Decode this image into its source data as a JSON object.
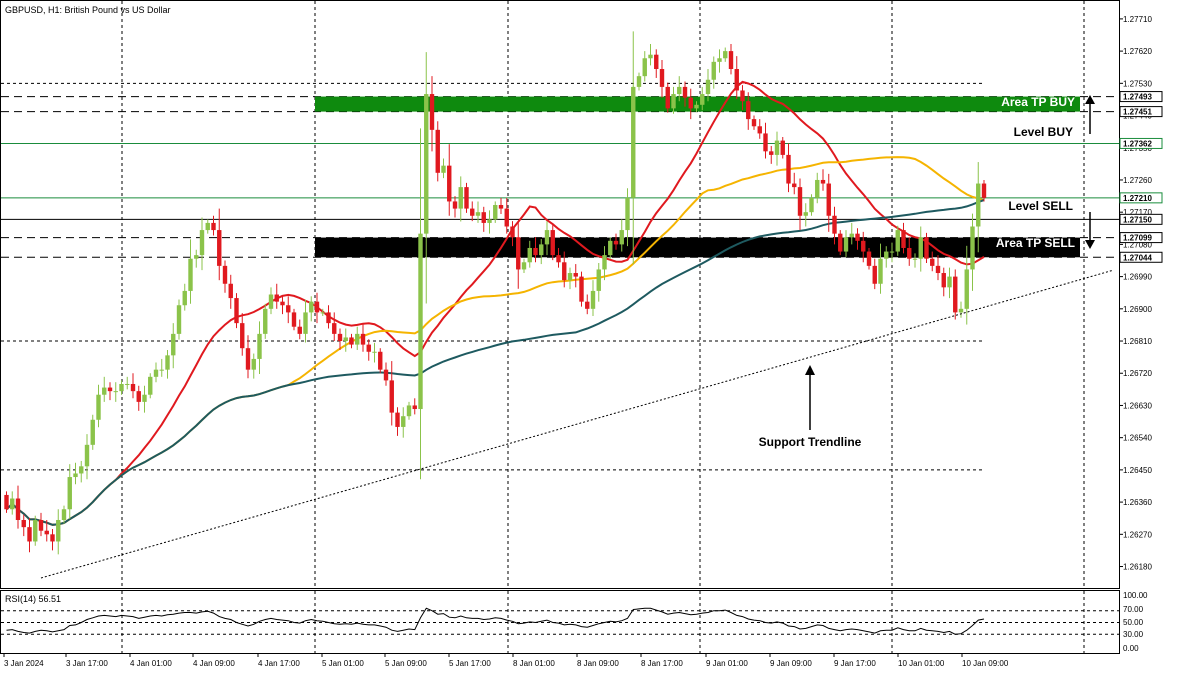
{
  "symbol_title": "GBPUSD, H1:  British Pound vs US Dollar",
  "rsi_title": "RSI(14) 56.51",
  "colors": {
    "bull": "#8bc34a",
    "bear": "#e0191f",
    "ma_red": "#e0191f",
    "ma_orange": "#f5b400",
    "ma_teal": "#1e5a60",
    "tp_buy": "#0e8a0e",
    "tp_sell": "#000000",
    "level_green": "#1a8c3c"
  },
  "annotations": {
    "area_tp_buy": "Area TP BUY",
    "area_tp_sell": "Area TP SELL",
    "level_buy": "Level BUY",
    "level_sell": "Level SELL",
    "support_trendline": "Support Trendline"
  },
  "chart_data": {
    "type": "candlestick",
    "instrument": "GBPUSD",
    "timeframe": "H1",
    "y_range": [
      1.2612,
      1.2776
    ],
    "y_ticks": [
      "1.27710",
      "1.27620",
      "1.27530",
      "1.27440",
      "1.27350",
      "1.27260",
      "1.27170",
      "1.27080",
      "1.26990",
      "1.26900",
      "1.26810",
      "1.26720",
      "1.26630",
      "1.26540",
      "1.26450",
      "1.26360",
      "1.26270",
      "1.26180"
    ],
    "x_ticks": [
      "3 Jan 2024",
      "3 Jan 17:00",
      "4 Jan 01:00",
      "4 Jan 09:00",
      "4 Jan 17:00",
      "5 Jan 01:00",
      "5 Jan 09:00",
      "5 Jan 17:00",
      "8 Jan 01:00",
      "8 Jan 09:00",
      "8 Jan 17:00",
      "9 Jan 01:00",
      "9 Jan 09:00",
      "9 Jan 17:00",
      "10 Jan 01:00",
      "10 Jan 09:00"
    ],
    "price_labels": [
      {
        "text": "1.27493",
        "value": 1.27493,
        "style": "tp_buy"
      },
      {
        "text": "1.27451",
        "value": 1.27451,
        "style": "tp_buy"
      },
      {
        "text": "1.27362",
        "value": 1.27362,
        "style": "level_green"
      },
      {
        "text": "1.27210",
        "value": 1.2721,
        "style": "level_green"
      },
      {
        "text": "1.27150",
        "value": 1.2715,
        "style": "black"
      },
      {
        "text": "1.27099",
        "value": 1.27099,
        "style": "black"
      },
      {
        "text": "1.27044",
        "value": 1.27044,
        "style": "black"
      }
    ],
    "zones": {
      "tp_buy": [
        1.27451,
        1.27493
      ],
      "tp_sell": [
        1.27044,
        1.27099
      ]
    },
    "levels": {
      "buy": 1.27362,
      "sell_green": 1.2721,
      "sell_black": 1.2715
    },
    "trendline": {
      "start": {
        "bar": 6,
        "price": 1.26148
      },
      "end": {
        "bar": 174,
        "price": 1.26998
      }
    },
    "closes": [
      1.2634,
      1.2637,
      1.2631,
      1.2629,
      1.2625,
      1.2631,
      1.2628,
      1.2627,
      1.2625,
      1.2631,
      1.2634,
      1.2643,
      1.2644,
      1.2646,
      1.2652,
      1.2659,
      1.2666,
      1.2668,
      1.2667,
      1.2667,
      1.2669,
      1.2669,
      1.2667,
      1.2664,
      1.2666,
      1.2671,
      1.2673,
      1.2673,
      1.2677,
      1.2683,
      1.2691,
      1.2695,
      1.2704,
      1.2705,
      1.2712,
      1.2714,
      1.2712,
      1.2702,
      1.2697,
      1.2693,
      1.2686,
      1.2679,
      1.2673,
      1.2676,
      1.2683,
      1.269,
      1.2694,
      1.2692,
      1.2691,
      1.2689,
      1.2685,
      1.2683,
      1.2689,
      1.2692,
      1.2689,
      1.2689,
      1.2686,
      1.2683,
      1.2681,
      1.2682,
      1.268,
      1.2683,
      1.268,
      1.2678,
      1.2678,
      1.2673,
      1.267,
      1.2661,
      1.2657,
      1.266,
      1.2663,
      1.2662,
      1.2711,
      1.275,
      1.274,
      1.2728,
      1.273,
      1.272,
      1.2718,
      1.2724,
      1.2718,
      1.2716,
      1.2717,
      1.2714,
      1.2715,
      1.2719,
      1.2718,
      1.2713,
      1.271,
      1.2701,
      1.2703,
      1.2707,
      1.2705,
      1.2708,
      1.2712,
      1.2705,
      1.2703,
      1.2698,
      1.27,
      1.2699,
      1.2692,
      1.269,
      1.2695,
      1.2701,
      1.2705,
      1.2709,
      1.2708,
      1.2712,
      1.2721,
      1.2752,
      1.2755,
      1.276,
      1.2761,
      1.2757,
      1.2752,
      1.2746,
      1.275,
      1.2752,
      1.2749,
      1.2746,
      1.2747,
      1.275,
      1.2754,
      1.2759,
      1.276,
      1.2762,
      1.2757,
      1.2751,
      1.2748,
      1.2743,
      1.2741,
      1.2739,
      1.2734,
      1.2733,
      1.2737,
      1.2733,
      1.2725,
      1.2724,
      1.2716,
      1.2717,
      1.2721,
      1.2726,
      1.2725,
      1.2716,
      1.2711,
      1.2706,
      1.271,
      1.2711,
      1.2709,
      1.2706,
      1.2702,
      1.2697,
      1.2704,
      1.2706,
      1.2706,
      1.2712,
      1.2707,
      1.2704,
      1.2704,
      1.271,
      1.2704,
      1.2702,
      1.27,
      1.2696,
      1.2699,
      1.2689,
      1.269,
      1.2701,
      1.2713,
      1.2725,
      1.2721
    ],
    "rsi": {
      "title": "RSI(14) 56.51",
      "range": [
        0,
        100
      ],
      "ticks": [
        "100.00",
        "70.00",
        "50.00",
        "30.00",
        "0.00"
      ],
      "levels": [
        70,
        50,
        30
      ],
      "values": [
        37,
        38,
        35,
        33,
        32,
        35,
        37,
        36,
        34,
        36,
        38,
        45,
        46,
        50,
        55,
        58,
        61,
        62,
        61,
        60,
        62,
        61,
        60,
        57,
        59,
        61,
        62,
        61,
        63,
        64,
        66,
        67,
        67,
        66,
        68,
        69,
        66,
        60,
        57,
        55,
        50,
        47,
        44,
        47,
        52,
        55,
        57,
        55,
        54,
        53,
        50,
        49,
        53,
        55,
        53,
        52,
        50,
        48,
        47,
        48,
        47,
        49,
        47,
        46,
        46,
        44,
        42,
        37,
        35,
        37,
        39,
        38,
        58,
        74,
        70,
        64,
        65,
        59,
        58,
        61,
        58,
        57,
        57,
        55,
        56,
        58,
        57,
        54,
        52,
        48,
        49,
        51,
        50,
        52,
        54,
        50,
        49,
        46,
        47,
        46,
        43,
        42,
        45,
        48,
        50,
        52,
        51,
        53,
        57,
        72,
        73,
        74,
        74,
        71,
        68,
        64,
        66,
        67,
        65,
        63,
        64,
        66,
        67,
        70,
        70,
        71,
        67,
        62,
        60,
        56,
        54,
        53,
        50,
        49,
        51,
        49,
        44,
        43,
        39,
        40,
        43,
        46,
        45,
        40,
        38,
        36,
        38,
        39,
        38,
        36,
        34,
        32,
        36,
        37,
        37,
        41,
        38,
        36,
        36,
        40,
        37,
        36,
        35,
        33,
        35,
        30,
        31,
        37,
        45,
        54,
        56
      ]
    }
  }
}
